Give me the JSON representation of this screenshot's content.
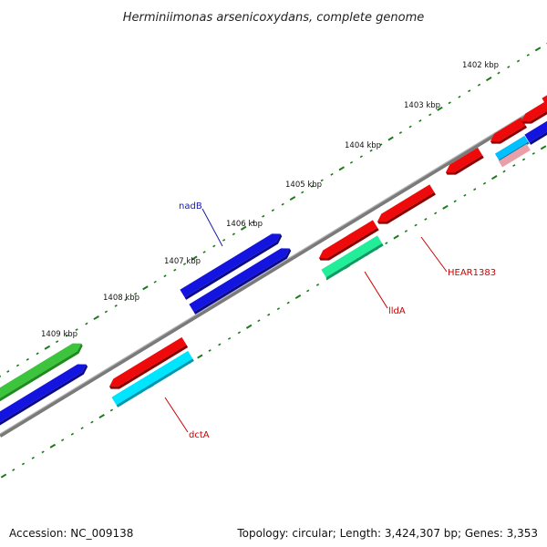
{
  "title": "Herminiimonas arsenicoxydans, complete genome",
  "footer": {
    "accession": "Accession: NC_009138",
    "summary": "Topology: circular; Length: 3,424,307 bp; Genes: 3,353"
  },
  "scale_labels": [
    "1402 kbp",
    "1403 kbp",
    "1404 kbp",
    "1405 kbp",
    "1406 kbp",
    "1407 kbp",
    "1408 kbp",
    "1409 kbp"
  ],
  "gene_labels": {
    "nadB": "nadB",
    "HEAR1383": "HEAR1383",
    "lldA": "lldA",
    "dctA": "dctA"
  },
  "colors": {
    "backbone": "#7a7a7a",
    "tick": "#1b7a1b",
    "blue": "#1414e0",
    "red": "#ee0a0a",
    "green": "#3cc43c",
    "teal": "#22ee99",
    "cyan": "#00e5ff",
    "pink": "#e8a0a8",
    "label_blue": "#1a1aa8",
    "label_red": "#cc0000"
  }
}
